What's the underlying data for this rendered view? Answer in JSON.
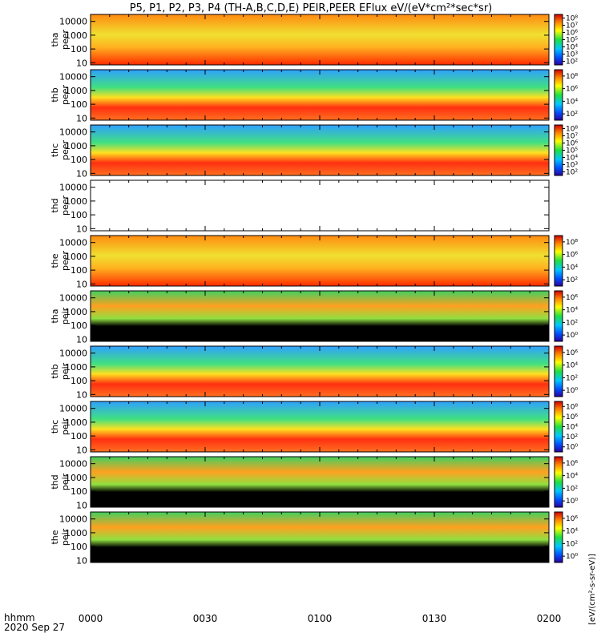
{
  "title": "P5, P1, P2, P3, P4 (TH-A,B,C,D,E) PEIR,PEER EFlux eV/(eV*cm²*sec*sr)",
  "time_axis": {
    "label_line1": "hhmm",
    "label_line2": "2020 Sep 27",
    "ticks": [
      "0000",
      "0030",
      "0100",
      "0130",
      "0200"
    ]
  },
  "colorbar_label": "[eV/(cm²-s-sr-eV)]",
  "colors": {
    "background_fill": "#e0311e",
    "no_data": "#000000"
  },
  "chart_data": [
    {
      "type": "heatmap",
      "panel": "tha peer",
      "ylabel": "tha\npeer",
      "yticks": [
        "10",
        "100",
        "1000",
        "10000"
      ],
      "cbar_ticks": [
        "10²",
        "10³",
        "10⁴",
        "10⁵",
        "10⁶",
        "10⁷",
        "10⁸"
      ],
      "x_range_hhmm": [
        "0000",
        "0200"
      ],
      "y_range_eV": [
        7,
        32000
      ],
      "dominant_level": "high",
      "notes": "saturated red band below 20 eV"
    },
    {
      "type": "heatmap",
      "panel": "thb peer",
      "ylabel": "thb\npeer",
      "yticks": [
        "10",
        "100",
        "1000",
        "10000"
      ],
      "cbar_ticks": [
        "10²",
        "10⁴",
        "10⁶",
        "10⁸"
      ],
      "x_range_hhmm": [
        "0000",
        "0200"
      ],
      "y_range_eV": [
        7,
        32000
      ],
      "dominant_level": "mid",
      "notes": "data starts near 0004"
    },
    {
      "type": "heatmap",
      "panel": "thc peer",
      "ylabel": "thc\npeer",
      "yticks": [
        "10",
        "100",
        "1000",
        "10000"
      ],
      "cbar_ticks": [
        "10²",
        "10³",
        "10⁴",
        "10⁵",
        "10⁶",
        "10⁷",
        "10⁸"
      ],
      "x_range_hhmm": [
        "0000",
        "0200"
      ],
      "y_range_eV": [
        7,
        32000
      ],
      "dominant_level": "mid"
    },
    {
      "type": "heatmap",
      "panel": "thd peer",
      "ylabel": "thd\npeer",
      "yticks": [
        "10",
        "100",
        "1000",
        "10000"
      ],
      "cbar_ticks": [],
      "x_range_hhmm": [
        "0000",
        "0200"
      ],
      "y_range_eV": [
        7,
        32000
      ],
      "dominant_level": "none",
      "notes": "no data"
    },
    {
      "type": "heatmap",
      "panel": "the peer",
      "ylabel": "the\npeer",
      "yticks": [
        "10",
        "100",
        "1000",
        "10000"
      ],
      "cbar_ticks": [
        "10²",
        "10⁴",
        "10⁶",
        "10⁸"
      ],
      "x_range_hhmm": [
        "0000",
        "0200"
      ],
      "y_range_eV": [
        7,
        32000
      ],
      "dominant_level": "high"
    },
    {
      "type": "heatmap",
      "panel": "tha peir",
      "ylabel": "tha\npeir",
      "yticks": [
        "10",
        "100",
        "1000",
        "10000"
      ],
      "cbar_ticks": [
        "10⁰",
        "10²",
        "10⁴",
        "10⁶"
      ],
      "x_range_hhmm": [
        "0000",
        "0200"
      ],
      "y_range_eV": [
        7,
        32000
      ],
      "dominant_level": "low"
    },
    {
      "type": "heatmap",
      "panel": "thb peir",
      "ylabel": "thb\npeir",
      "yticks": [
        "10",
        "100",
        "1000",
        "10000"
      ],
      "cbar_ticks": [
        "10⁰",
        "10²",
        "10⁴",
        "10⁶"
      ],
      "x_range_hhmm": [
        "0000",
        "0200"
      ],
      "y_range_eV": [
        7,
        32000
      ],
      "dominant_level": "mid"
    },
    {
      "type": "heatmap",
      "panel": "thc peir",
      "ylabel": "thc\npeir",
      "yticks": [
        "10",
        "100",
        "1000",
        "10000"
      ],
      "cbar_ticks": [
        "10⁰",
        "10²",
        "10⁴",
        "10⁶",
        "10⁸"
      ],
      "x_range_hhmm": [
        "0000",
        "0200"
      ],
      "y_range_eV": [
        7,
        32000
      ],
      "dominant_level": "mid"
    },
    {
      "type": "heatmap",
      "panel": "thd peir",
      "ylabel": "thd\npeir",
      "yticks": [
        "10",
        "100",
        "1000",
        "10000"
      ],
      "cbar_ticks": [
        "10⁰",
        "10²",
        "10⁴",
        "10⁶"
      ],
      "x_range_hhmm": [
        "0000",
        "0200"
      ],
      "y_range_eV": [
        7,
        32000
      ],
      "dominant_level": "low",
      "notes": "data only 0000-0013"
    },
    {
      "type": "heatmap",
      "panel": "the peir",
      "ylabel": "the\npeir",
      "yticks": [
        "10",
        "100",
        "1000",
        "10000"
      ],
      "cbar_ticks": [
        "10⁰",
        "10²",
        "10⁴",
        "10⁶"
      ],
      "x_range_hhmm": [
        "0000",
        "0200"
      ],
      "y_range_eV": [
        7,
        32000
      ],
      "dominant_level": "low"
    }
  ]
}
